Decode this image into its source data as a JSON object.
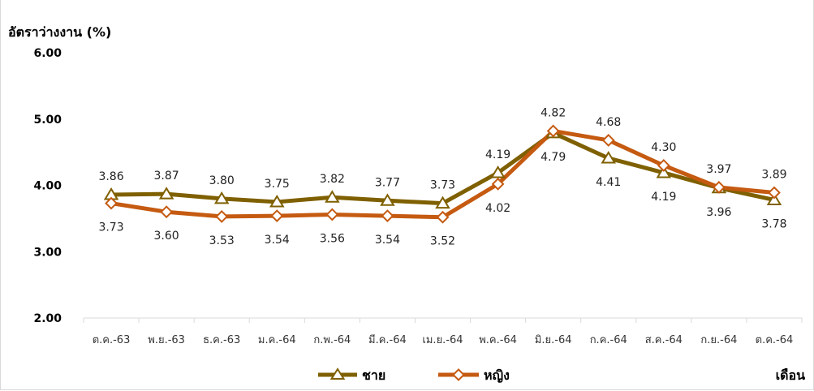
{
  "chart_data": {
    "type": "line",
    "ylabel": "อัตราว่างงาน (%)",
    "xlabel": "เดือน",
    "ylim": [
      2.0,
      6.0
    ],
    "yticks": [
      "2.00",
      "3.00",
      "4.00",
      "5.00",
      "6.00"
    ],
    "categories": [
      "ต.ค.-63",
      "พ.ย.-63",
      "ธ.ค.-63",
      "ม.ค.-64",
      "ก.พ.-64",
      "มี.ค.-64",
      "เม.ย.-64",
      "พ.ค.-64",
      "มิ.ย.-64",
      "ก.ค.-64",
      "ส.ค.-64",
      "ก.ย.-64",
      "ต.ค.-64"
    ],
    "series": [
      {
        "name": "ชาย",
        "color": "#7f6000",
        "marker": "triangle",
        "values": [
          3.86,
          3.87,
          3.8,
          3.75,
          3.82,
          3.77,
          3.73,
          4.19,
          4.79,
          4.41,
          4.19,
          3.96,
          3.78
        ],
        "labels": [
          "3.86",
          "3.87",
          "3.80",
          "3.75",
          "3.82",
          "3.77",
          "3.73",
          "4.19",
          "4.79",
          "4.41",
          "4.19",
          "3.96",
          "3.78"
        ]
      },
      {
        "name": "หญิง",
        "color": "#c55a11",
        "marker": "diamond",
        "values": [
          3.73,
          3.6,
          3.53,
          3.54,
          3.56,
          3.54,
          3.52,
          4.02,
          4.82,
          4.68,
          4.3,
          3.97,
          3.89
        ],
        "labels": [
          "3.73",
          "3.60",
          "3.53",
          "3.54",
          "3.56",
          "3.54",
          "3.52",
          "4.02",
          "4.82",
          "4.68",
          "4.30",
          "3.97",
          "3.89"
        ]
      }
    ],
    "grid": false,
    "legend": "bottom-center"
  }
}
